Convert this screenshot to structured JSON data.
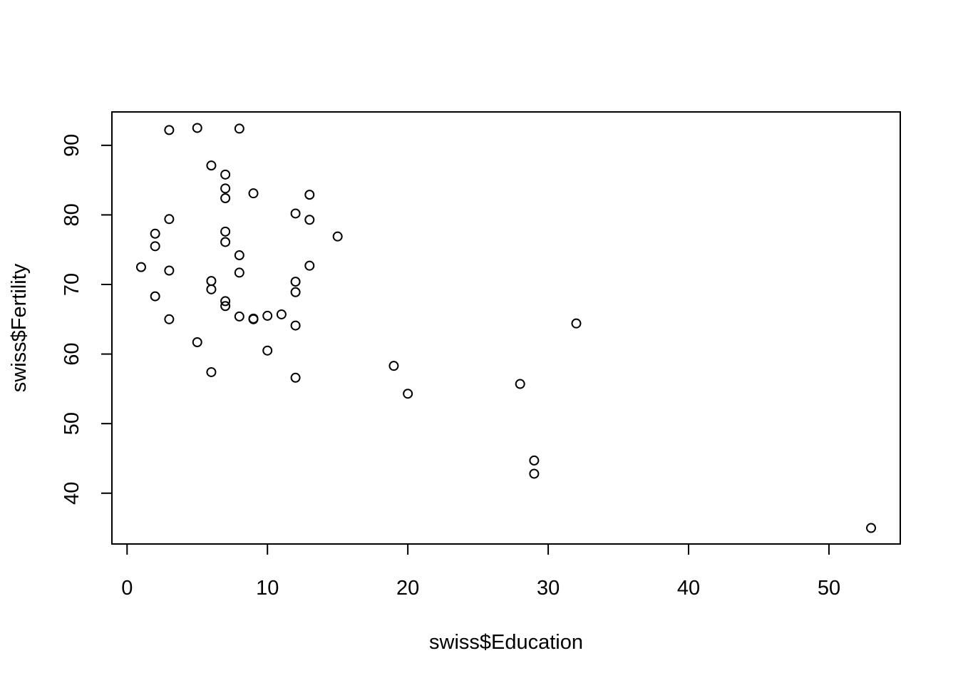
{
  "chart_data": {
    "type": "scatter",
    "xlabel": "swiss$Education",
    "ylabel": "swiss$Fertility",
    "x": [
      12,
      9,
      5,
      7,
      15,
      7,
      7,
      8,
      7,
      13,
      6,
      12,
      7,
      12,
      5,
      2,
      8,
      28,
      20,
      9,
      10,
      3,
      12,
      6,
      1,
      8,
      3,
      10,
      19,
      8,
      2,
      6,
      2,
      6,
      3,
      9,
      3,
      13,
      12,
      11,
      13,
      32,
      7,
      7,
      53,
      29,
      29
    ],
    "y": [
      80.2,
      83.1,
      92.5,
      85.8,
      76.9,
      76.1,
      83.8,
      92.4,
      82.4,
      82.9,
      87.1,
      64.1,
      66.9,
      68.9,
      61.7,
      68.3,
      71.7,
      55.7,
      54.3,
      65.1,
      65.5,
      65.0,
      56.6,
      57.4,
      72.5,
      74.2,
      72.0,
      60.5,
      58.3,
      65.4,
      75.5,
      69.3,
      77.3,
      70.5,
      79.4,
      65.0,
      92.2,
      79.3,
      70.4,
      65.7,
      72.7,
      64.4,
      77.6,
      67.6,
      35.0,
      44.7,
      42.8
    ],
    "xlim": [
      -1.08,
      55.08
    ],
    "ylim": [
      32.7,
      94.8
    ],
    "xticks": [
      0,
      10,
      20,
      30,
      40,
      50
    ],
    "yticks": [
      40,
      50,
      60,
      70,
      80,
      90
    ],
    "color": "#000000"
  }
}
